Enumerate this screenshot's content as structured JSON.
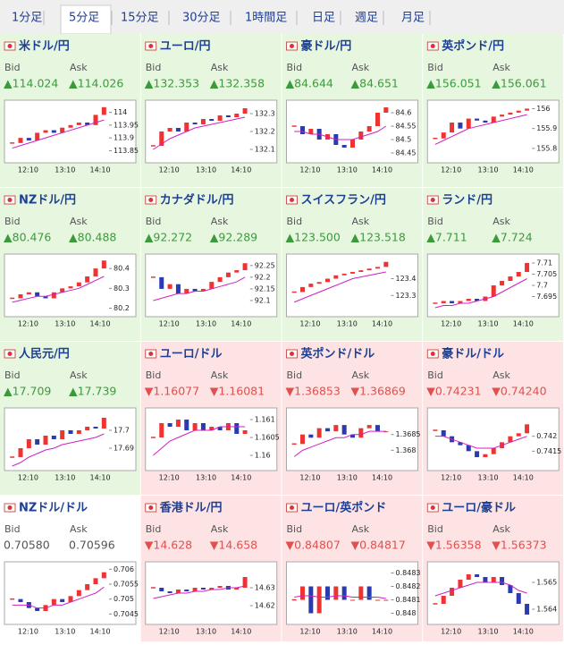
{
  "tabs": [
    "1分足",
    "5分足",
    "15分足",
    "30分足",
    "1時間足",
    "日足",
    "週足",
    "月足"
  ],
  "selected_tab": 1,
  "tiles": [
    {
      "name": "米ドル/円",
      "bg": "#e7f7df",
      "trend": "up",
      "bid_label": "Bid",
      "ask_label": "Ask",
      "bid": "▲114.024",
      "ask": "▲114.026",
      "chart": {
        "type": "candlestick",
        "values": [
          113.88,
          113.9,
          113.89,
          113.92,
          113.93,
          113.92,
          113.94,
          113.95,
          113.96,
          113.95,
          113.99,
          114.02
        ],
        "ma": [
          113.86,
          113.87,
          113.88,
          113.89,
          113.9,
          113.91,
          113.92,
          113.93,
          113.94,
          113.95,
          113.96,
          113.97
        ],
        "ylim": [
          113.82,
          114.03
        ],
        "yticks": [
          114,
          113.95,
          113.9,
          113.85
        ],
        "xticks": [
          "12:10",
          "13:10",
          "14:10"
        ]
      }
    },
    {
      "name": "ユーロ/円",
      "bg": "#e7f7df",
      "trend": "up",
      "bid_label": "Bid",
      "ask_label": "Ask",
      "bid": "▲132.353",
      "ask": "▲132.358",
      "chart": {
        "type": "candlestick",
        "values": [
          132.12,
          132.2,
          132.22,
          132.2,
          132.25,
          132.24,
          132.27,
          132.26,
          132.29,
          132.28,
          132.3,
          132.33
        ],
        "ma": [
          132.1,
          132.13,
          132.16,
          132.18,
          132.2,
          132.22,
          132.23,
          132.24,
          132.25,
          132.26,
          132.27,
          132.28
        ],
        "ylim": [
          132.05,
          132.35
        ],
        "yticks": [
          132.3,
          132.2,
          132.1
        ],
        "xticks": [
          "12:10",
          "13:10",
          "14:10"
        ]
      }
    },
    {
      "name": "豪ドル/円",
      "bg": "#e7f7df",
      "trend": "up",
      "bid_label": "Bid",
      "ask_label": "Ask",
      "bid": "▲84.644",
      "ask": "▲84.651",
      "chart": {
        "type": "candlestick",
        "values": [
          84.55,
          84.52,
          84.54,
          84.5,
          84.52,
          84.48,
          84.47,
          84.5,
          84.53,
          84.55,
          84.6,
          84.62
        ],
        "ma": [
          84.53,
          84.53,
          84.52,
          84.52,
          84.51,
          84.5,
          84.5,
          84.5,
          84.51,
          84.52,
          84.53,
          84.55
        ],
        "ylim": [
          84.43,
          84.63
        ],
        "yticks": [
          84.6,
          84.55,
          84.5,
          84.45
        ],
        "xticks": [
          "12:10",
          "13:10",
          "14:10"
        ]
      }
    },
    {
      "name": "英ポンド/円",
      "bg": "#e7f7df",
      "trend": "up",
      "bid_label": "Bid",
      "ask_label": "Ask",
      "bid": "▲156.051",
      "ask": "▲156.061",
      "chart": {
        "type": "candlestick",
        "values": [
          155.85,
          155.88,
          155.93,
          155.9,
          155.95,
          155.94,
          155.93,
          155.96,
          155.97,
          155.98,
          155.99,
          156.0
        ],
        "ma": [
          155.82,
          155.84,
          155.86,
          155.88,
          155.9,
          155.91,
          155.92,
          155.93,
          155.94,
          155.95,
          155.96,
          155.97
        ],
        "ylim": [
          155.75,
          156.02
        ],
        "yticks": [
          156,
          155.9,
          155.8
        ],
        "xticks": [
          "12:10",
          "13:10",
          "14:10"
        ]
      }
    },
    {
      "name": "NZドル/円",
      "bg": "#e7f7df",
      "trend": "up",
      "bid_label": "Bid",
      "ask_label": "Ask",
      "bid": "▲80.476",
      "ask": "▲80.488",
      "chart": {
        "type": "candlestick",
        "values": [
          80.25,
          80.27,
          80.28,
          80.26,
          80.25,
          80.28,
          80.3,
          80.31,
          80.33,
          80.36,
          80.4,
          80.44
        ],
        "ma": [
          80.23,
          80.24,
          80.25,
          80.26,
          80.26,
          80.27,
          80.28,
          80.29,
          80.3,
          80.32,
          80.34,
          80.36
        ],
        "ylim": [
          80.18,
          80.45
        ],
        "yticks": [
          80.4,
          80.3,
          80.2
        ],
        "xticks": [
          "12:10",
          "13:10",
          "14:10"
        ]
      }
    },
    {
      "name": "カナダドル/円",
      "bg": "#e7f7df",
      "trend": "up",
      "bid_label": "Bid",
      "ask_label": "Ask",
      "bid": "▲92.272",
      "ask": "▲92.289",
      "chart": {
        "type": "candlestick",
        "values": [
          92.2,
          92.15,
          92.17,
          92.13,
          92.15,
          92.14,
          92.15,
          92.18,
          92.2,
          92.22,
          92.23,
          92.26
        ],
        "ma": [
          92.1,
          92.11,
          92.12,
          92.13,
          92.13,
          92.14,
          92.14,
          92.15,
          92.16,
          92.17,
          92.18,
          92.2
        ],
        "ylim": [
          92.05,
          92.28
        ],
        "yticks": [
          92.25,
          92.2,
          92.15,
          92.1
        ],
        "xticks": [
          "12:10",
          "13:10",
          "14:10"
        ]
      }
    },
    {
      "name": "スイスフラン/円",
      "bg": "#e7f7df",
      "trend": "up",
      "bid_label": "Bid",
      "ask_label": "Ask",
      "bid": "▲123.500",
      "ask": "▲123.518",
      "chart": {
        "type": "candlestick",
        "values": [
          123.32,
          123.35,
          123.37,
          123.38,
          123.4,
          123.42,
          123.43,
          123.44,
          123.45,
          123.46,
          123.47,
          123.5
        ],
        "ma": [
          123.26,
          123.28,
          123.3,
          123.32,
          123.34,
          123.36,
          123.38,
          123.4,
          123.41,
          123.42,
          123.43,
          123.44
        ],
        "ylim": [
          123.2,
          123.52
        ],
        "yticks": [
          123.4,
          123.3
        ],
        "xticks": [
          "12:10",
          "13:10",
          "14:10"
        ]
      }
    },
    {
      "name": "ランド/円",
      "bg": "#e7f7df",
      "trend": "up",
      "bid_label": "Bid",
      "ask_label": "Ask",
      "bid": "▲7.711",
      "ask": "▲7.724",
      "chart": {
        "type": "candlestick",
        "values": [
          7.692,
          7.693,
          7.692,
          7.693,
          7.694,
          7.693,
          7.695,
          7.7,
          7.702,
          7.704,
          7.706,
          7.71
        ],
        "ma": [
          7.69,
          7.691,
          7.691,
          7.692,
          7.692,
          7.693,
          7.694,
          7.695,
          7.697,
          7.699,
          7.701,
          7.703
        ],
        "ylim": [
          7.688,
          7.712
        ],
        "yticks": [
          7.71,
          7.705,
          7.7,
          7.695
        ],
        "xticks": [
          "12:10",
          "13:10",
          "14:10"
        ]
      }
    },
    {
      "name": "人民元/円",
      "bg": "#e7f7df",
      "trend": "up",
      "bid_label": "Bid",
      "ask_label": "Ask",
      "bid": "▲17.709",
      "ask": "▲17.739",
      "chart": {
        "type": "candlestick",
        "values": [
          17.685,
          17.69,
          17.695,
          17.692,
          17.697,
          17.695,
          17.7,
          17.698,
          17.7,
          17.702,
          17.701,
          17.707
        ],
        "ma": [
          17.68,
          17.682,
          17.685,
          17.687,
          17.689,
          17.69,
          17.692,
          17.693,
          17.694,
          17.695,
          17.696,
          17.698
        ],
        "ylim": [
          17.68,
          17.71
        ],
        "yticks": [
          17.7,
          17.69
        ],
        "xticks": [
          "12:10",
          "13:10",
          "14:10"
        ]
      }
    },
    {
      "name": "ユーロ/ドル",
      "bg": "#fde3e3",
      "trend": "down",
      "bid_label": "Bid",
      "ask_label": "Ask",
      "bid": "▼1.16077",
      "ask": "▼1.16081",
      "chart": {
        "type": "candlestick",
        "values": [
          1.1605,
          1.1609,
          1.1608,
          1.161,
          1.1607,
          1.1609,
          1.1607,
          1.1608,
          1.1607,
          1.1609,
          1.1606,
          1.1607
        ],
        "ma": [
          1.16,
          1.1602,
          1.1604,
          1.1605,
          1.1606,
          1.1607,
          1.1607,
          1.1607,
          1.1608,
          1.1608,
          1.1608,
          1.1608
        ],
        "ylim": [
          1.1597,
          1.1612
        ],
        "yticks": [
          1.161,
          1.1605,
          1.16
        ],
        "xticks": [
          "12:10",
          "13:10",
          "14:10"
        ]
      }
    },
    {
      "name": "英ポンド/ドル",
      "bg": "#fde3e3",
      "trend": "down",
      "bid_label": "Bid",
      "ask_label": "Ask",
      "bid": "▼1.36853",
      "ask": "▼1.36869",
      "chart": {
        "type": "candlestick",
        "values": [
          1.3682,
          1.3685,
          1.3684,
          1.3687,
          1.3686,
          1.3688,
          1.3685,
          1.3684,
          1.3687,
          1.3688,
          1.3686,
          1.3686
        ],
        "ma": [
          1.3678,
          1.368,
          1.3681,
          1.3682,
          1.3683,
          1.3684,
          1.3684,
          1.3685,
          1.3685,
          1.3686,
          1.3686,
          1.3686
        ],
        "ylim": [
          1.3675,
          1.3692
        ],
        "yticks": [
          1.3685,
          1.368
        ],
        "xticks": [
          "12:10",
          "13:10",
          "14:10"
        ]
      }
    },
    {
      "name": "豪ドル/ドル",
      "bg": "#fde3e3",
      "trend": "down",
      "bid_label": "Bid",
      "ask_label": "Ask",
      "bid": "▼0.74231",
      "ask": "▼0.74240",
      "chart": {
        "type": "candlestick",
        "values": [
          0.7422,
          0.742,
          0.7418,
          0.7417,
          0.7415,
          0.7413,
          0.7414,
          0.7416,
          0.7418,
          0.742,
          0.7421,
          0.7424
        ],
        "ma": [
          0.742,
          0.742,
          0.7419,
          0.7418,
          0.7417,
          0.7416,
          0.7416,
          0.7416,
          0.7417,
          0.7418,
          0.7419,
          0.742
        ],
        "ylim": [
          0.741,
          0.7428
        ],
        "yticks": [
          0.742,
          0.7415
        ],
        "xticks": [
          "12:10",
          "13:10",
          "14:10"
        ]
      }
    },
    {
      "name": "NZドル/ドル",
      "bg": "#ffffff",
      "trend": null,
      "bid_label": "Bid",
      "ask_label": "Ask",
      "bid": "0.70580",
      "ask": "0.70596",
      "chart": {
        "type": "candlestick",
        "values": [
          0.705,
          0.7049,
          0.7047,
          0.7046,
          0.7048,
          0.705,
          0.7049,
          0.7051,
          0.7053,
          0.7055,
          0.7057,
          0.7059
        ],
        "ma": [
          0.7048,
          0.7048,
          0.7048,
          0.7047,
          0.7047,
          0.7048,
          0.7048,
          0.7049,
          0.705,
          0.7051,
          0.7052,
          0.7054
        ],
        "ylim": [
          0.7043,
          0.7061
        ],
        "yticks": [
          0.706,
          0.7055,
          0.705,
          0.7045
        ],
        "xticks": [
          "12:10",
          "13:10",
          "14:10"
        ]
      }
    },
    {
      "name": "香港ドル/円",
      "bg": "#fde3e3",
      "trend": "down",
      "bid_label": "Bid",
      "ask_label": "Ask",
      "bid": "▼14.628",
      "ask": "▼14.658",
      "chart": {
        "type": "candlestick",
        "values": [
          14.63,
          14.628,
          14.627,
          14.629,
          14.628,
          14.63,
          14.629,
          14.63,
          14.631,
          14.629,
          14.63,
          14.636
        ],
        "ma": [
          14.624,
          14.625,
          14.626,
          14.627,
          14.627,
          14.628,
          14.628,
          14.629,
          14.629,
          14.63,
          14.63,
          14.631
        ],
        "ylim": [
          14.612,
          14.642
        ],
        "yticks": [
          14.63,
          14.62
        ],
        "xticks": [
          "12:10",
          "13:10",
          "14:10"
        ]
      }
    },
    {
      "name": "ユーロ/英ポンド",
      "bg": "#fde3e3",
      "trend": "down",
      "bid_label": "Bid",
      "ask_label": "Ask",
      "bid": "▼0.84807",
      "ask": "▼0.84817",
      "chart": {
        "type": "candlestick",
        "values": [
          0.8481,
          0.8482,
          0.848,
          0.8482,
          0.8481,
          0.8482,
          0.8481,
          0.8481,
          0.8482,
          0.8481,
          0.8481,
          0.8481
        ],
        "ma": [
          0.84812,
          0.84813,
          0.84813,
          0.84812,
          0.84812,
          0.84813,
          0.84813,
          0.84812,
          0.84812,
          0.84812,
          0.84812,
          0.84811
        ],
        "ylim": [
          0.84795,
          0.84835
        ],
        "yticks": [
          0.8483,
          0.8482,
          0.8481,
          0.848
        ],
        "xticks": [
          "12:10",
          "13:10",
          "14:10"
        ]
      }
    },
    {
      "name": "ユーロ/豪ドル",
      "bg": "#fde3e3",
      "trend": "down",
      "bid_label": "Bid",
      "ask_label": "Ask",
      "bid": "▼1.56358",
      "ask": "▼1.56373",
      "chart": {
        "type": "candlestick",
        "values": [
          1.5642,
          1.5645,
          1.5648,
          1.5651,
          1.5653,
          1.5652,
          1.565,
          1.5652,
          1.5649,
          1.5646,
          1.5642,
          1.5638
        ],
        "ma": [
          1.5645,
          1.5646,
          1.5647,
          1.5648,
          1.5649,
          1.565,
          1.565,
          1.565,
          1.565,
          1.5649,
          1.5647,
          1.5646
        ],
        "ylim": [
          1.5636,
          1.5656
        ],
        "yticks": [
          1.565,
          1.564
        ],
        "xticks": [
          "12:10",
          "13:10",
          "14:10"
        ]
      }
    }
  ]
}
